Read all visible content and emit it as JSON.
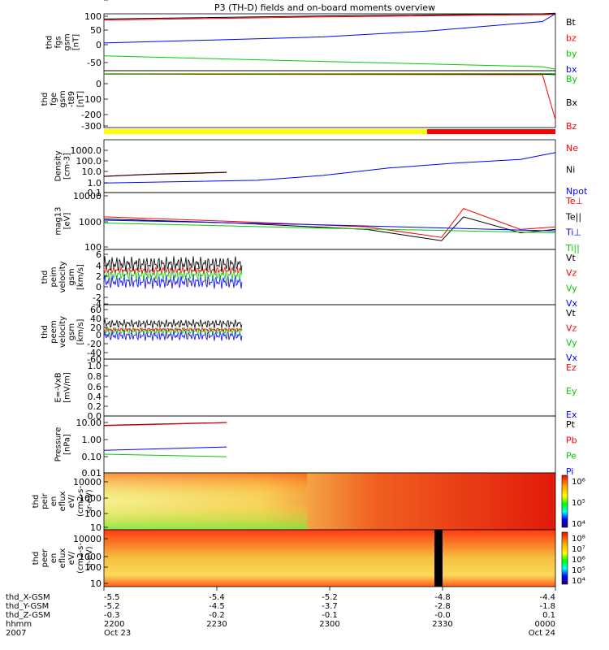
{
  "title": "P3 (TH-D) fields and on-board moments overview",
  "chart_data": {
    "type": "line",
    "x_tick_hhmm": [
      "2200",
      "2230",
      "2300",
      "2330",
      "0000"
    ],
    "x_rows": [
      {
        "label": "thd_X-GSM",
        "values": [
          "-5.5",
          "-5.4",
          "-5.2",
          "-4.8",
          "-4.4"
        ]
      },
      {
        "label": "thd_Y-GSM",
        "values": [
          "-5.2",
          "-4.5",
          "-3.7",
          "-2.8",
          "-1.8"
        ]
      },
      {
        "label": "thd_Z-GSM",
        "values": [
          "-0.3",
          "-0.2",
          "-0.1",
          "-0.0",
          "0.1"
        ]
      },
      {
        "label": "hhmm",
        "values": [
          "2200",
          "2230",
          "2300",
          "2330",
          "0000"
        ]
      },
      {
        "label": "2007",
        "values": [
          "Oct 23",
          "",
          "",
          "",
          "Oct 24"
        ]
      }
    ],
    "panels": [
      {
        "id": "fgs",
        "ylabel": [
          "thd",
          "fgs",
          "gsm",
          "[nT]"
        ],
        "yticks": [
          "100",
          "50",
          "0",
          "-50"
        ],
        "legend": [
          {
            "name": "Bt",
            "color": "#000000"
          },
          {
            "name": "bz",
            "color": "#ff0000"
          },
          {
            "name": "by",
            "color": "#00cc00"
          },
          {
            "name": "bx",
            "color": "#0000ff"
          }
        ],
        "series": [
          {
            "name": "Bt",
            "color": "#000000",
            "x": [
              0,
              0.5,
              1.0,
              1.05
            ],
            "y": [
              93,
              103,
              110,
              112
            ]
          },
          {
            "name": "bz",
            "color": "#ff0000",
            "x": [
              0,
              0.5,
              1.0,
              1.05
            ],
            "y": [
              90,
              100,
              107,
              108
            ]
          },
          {
            "name": "by",
            "color": "#00cc00",
            "x": [
              0,
              0.5,
              1.0,
              1.05
            ],
            "y": [
              -27,
              -45,
              -62,
              -70
            ]
          },
          {
            "name": "bx",
            "color": "#0000ff",
            "x": [
              0,
              0.25,
              0.5,
              0.75,
              1.0,
              1.05
            ],
            "y": [
              15,
              25,
              35,
              55,
              85,
              110
            ]
          }
        ]
      },
      {
        "id": "fge",
        "ylabel": [
          "thd",
          "fge",
          "gsm",
          "-t89",
          "[nT]"
        ],
        "yticks": [
          "0",
          "-100",
          "-200",
          "-300"
        ],
        "legend": [
          {
            "name": "By",
            "color": "#00cc00"
          },
          {
            "name": "Bx",
            "color": "#000000"
          },
          {
            "name": "Bz",
            "color": "#ff0000"
          }
        ],
        "series": [
          {
            "name": "Bx",
            "color": "#000000",
            "x": [
              0,
              1.0,
              1.05
            ],
            "y": [
              0,
              -2,
              -5
            ]
          },
          {
            "name": "Bz",
            "color": "#ff0000",
            "x": [
              0,
              1.0,
              1.05
            ],
            "y": [
              -2,
              -5,
              -290
            ]
          },
          {
            "name": "By",
            "color": "#00cc00",
            "x": [
              0,
              1.05
            ],
            "y": [
              0,
              2
            ]
          }
        ]
      },
      {
        "id": "density",
        "ylabel": [
          "Density",
          "[cm-3]"
        ],
        "yticks": [
          "1000.0",
          "100.0",
          "10.0",
          "1.0",
          "0.1"
        ],
        "legend": [
          {
            "name": "Ne",
            "color": "#ff0000"
          },
          {
            "name": "Ni",
            "color": "#000000"
          },
          {
            "name": "Npot",
            "color": "#0000ff"
          }
        ],
        "series": [
          {
            "name": "Ne",
            "color": "#ff0000",
            "x": [
              0,
              0.05,
              0.1,
              0.2,
              0.28
            ],
            "y": [
              2,
              2.5,
              3,
              3.6,
              4.3
            ]
          },
          {
            "name": "Ni",
            "color": "#000000",
            "x": [
              0,
              0.1,
              0.2,
              0.28
            ],
            "y": [
              2.1,
              3.1,
              3.8,
              4.5
            ]
          },
          {
            "name": "Npot",
            "color": "#0000ff",
            "x": [
              0,
              0.35,
              0.5,
              0.65,
              0.8,
              0.95,
              1.05
            ],
            "y": [
              0.6,
              1.0,
              2.5,
              10,
              25,
              50,
              180
            ]
          }
        ]
      },
      {
        "id": "temp",
        "ylabel": [
          "mag13",
          "[eV]"
        ],
        "yticks": [
          "10000",
          "1000",
          "100"
        ],
        "legend": [
          {
            "name": "Te⊥",
            "color": "#ff0000"
          },
          {
            "name": "Te||",
            "color": "#000000"
          },
          {
            "name": "Ti⊥",
            "color": "#0000ff"
          },
          {
            "name": "Ti||",
            "color": "#00cc00"
          }
        ],
        "series": [
          {
            "name": "Te||",
            "color": "#000000",
            "x": [
              0,
              0.3,
              0.6,
              0.77,
              0.82,
              0.95,
              1.05
            ],
            "y": [
              1000,
              700,
              400,
              150,
              1200,
              300,
              400
            ]
          },
          {
            "name": "Te⊥",
            "color": "#ff0000",
            "x": [
              0,
              0.3,
              0.6,
              0.77,
              0.82,
              0.95,
              1.05
            ],
            "y": [
              1200,
              800,
              500,
              200,
              2500,
              400,
              500
            ]
          },
          {
            "name": "Ti⊥",
            "color": "#0000ff",
            "x": [
              0,
              0.5,
              1.05
            ],
            "y": [
              900,
              600,
              350
            ]
          },
          {
            "name": "Ti||",
            "color": "#00cc00",
            "x": [
              0,
              0.5,
              1.05
            ],
            "y": [
              700,
              450,
              300
            ]
          }
        ]
      },
      {
        "id": "vel_i",
        "ylabel": [
          "thd",
          "peim",
          "velocity",
          "gsm",
          "[km/s]"
        ],
        "yticks": [
          "6",
          "4",
          "2",
          "0",
          "-2",
          "-4",
          "-6"
        ],
        "legend": [
          {
            "name": "Vt",
            "color": "#000000"
          },
          {
            "name": "Vz",
            "color": "#ff0000"
          },
          {
            "name": "Vy",
            "color": "#00cc00"
          },
          {
            "name": "Vx",
            "color": "#0000ff"
          }
        ],
        "series": []
      },
      {
        "id": "vel_e",
        "ylabel": [
          "thd",
          "peem",
          "velocity",
          "gsm",
          "[km/s]"
        ],
        "yticks": [
          "60",
          "40",
          "20",
          "0",
          "-20",
          "-40",
          "-60"
        ],
        "legend": [
          {
            "name": "Vt",
            "color": "#000000"
          },
          {
            "name": "Vz",
            "color": "#ff0000"
          },
          {
            "name": "Vy",
            "color": "#00cc00"
          },
          {
            "name": "Vx",
            "color": "#0000ff"
          }
        ],
        "series": []
      },
      {
        "id": "efield",
        "ylabel": [
          "E=-VxB",
          "[mV/m]"
        ],
        "yticks": [
          "1.0",
          "0.8",
          "0.6",
          "0.4",
          "0.2",
          "0.0"
        ],
        "legend": [
          {
            "name": "Ez",
            "color": "#ff0000"
          },
          {
            "name": "Ey",
            "color": "#00cc00"
          },
          {
            "name": "Ex",
            "color": "#0000ff"
          }
        ],
        "series": []
      },
      {
        "id": "pressure",
        "ylabel": [
          "Pressure",
          "[nPa]"
        ],
        "yticks": [
          "10.00",
          "1.00",
          "0.10",
          "0.01"
        ],
        "legend": [
          {
            "name": "Pt",
            "color": "#000000"
          },
          {
            "name": "Pb",
            "color": "#ff0000"
          },
          {
            "name": "Pe",
            "color": "#00cc00"
          },
          {
            "name": "Pi",
            "color": "#0000ff"
          }
        ],
        "series": [
          {
            "name": "Pt",
            "color": "#000000",
            "x": [
              0,
              0.28
            ],
            "y": [
              4.5,
              6.5
            ]
          },
          {
            "name": "Pb",
            "color": "#ff0000",
            "x": [
              0,
              0.28
            ],
            "y": [
              4.3,
              6.3
            ]
          },
          {
            "name": "Pi",
            "color": "#0000ff",
            "x": [
              0,
              0.28
            ],
            "y": [
              0.18,
              0.28
            ]
          },
          {
            "name": "Pe",
            "color": "#00cc00",
            "x": [
              0,
              0.28
            ],
            "y": [
              0.11,
              0.08
            ]
          }
        ]
      },
      {
        "id": "spec_i",
        "ylabel": [
          "thd",
          "peir",
          "en",
          "eflux",
          "eV/",
          "(cm2-s-",
          "sr-eV)"
        ],
        "yticks": [
          "10000",
          "1000",
          "100",
          "10"
        ],
        "colorbar": [
          "10⁶",
          "10⁵",
          "10⁴"
        ]
      },
      {
        "id": "spec_e",
        "ylabel": [
          "thd",
          "peer",
          "en",
          "eflux",
          "eV/",
          "(cm2-s-",
          "sr-eV)"
        ],
        "yticks": [
          "10000",
          "1000",
          "100",
          "10"
        ],
        "colorbar": [
          "10⁸",
          "10⁷",
          "10⁶",
          "10⁵",
          "10⁴"
        ]
      }
    ]
  }
}
